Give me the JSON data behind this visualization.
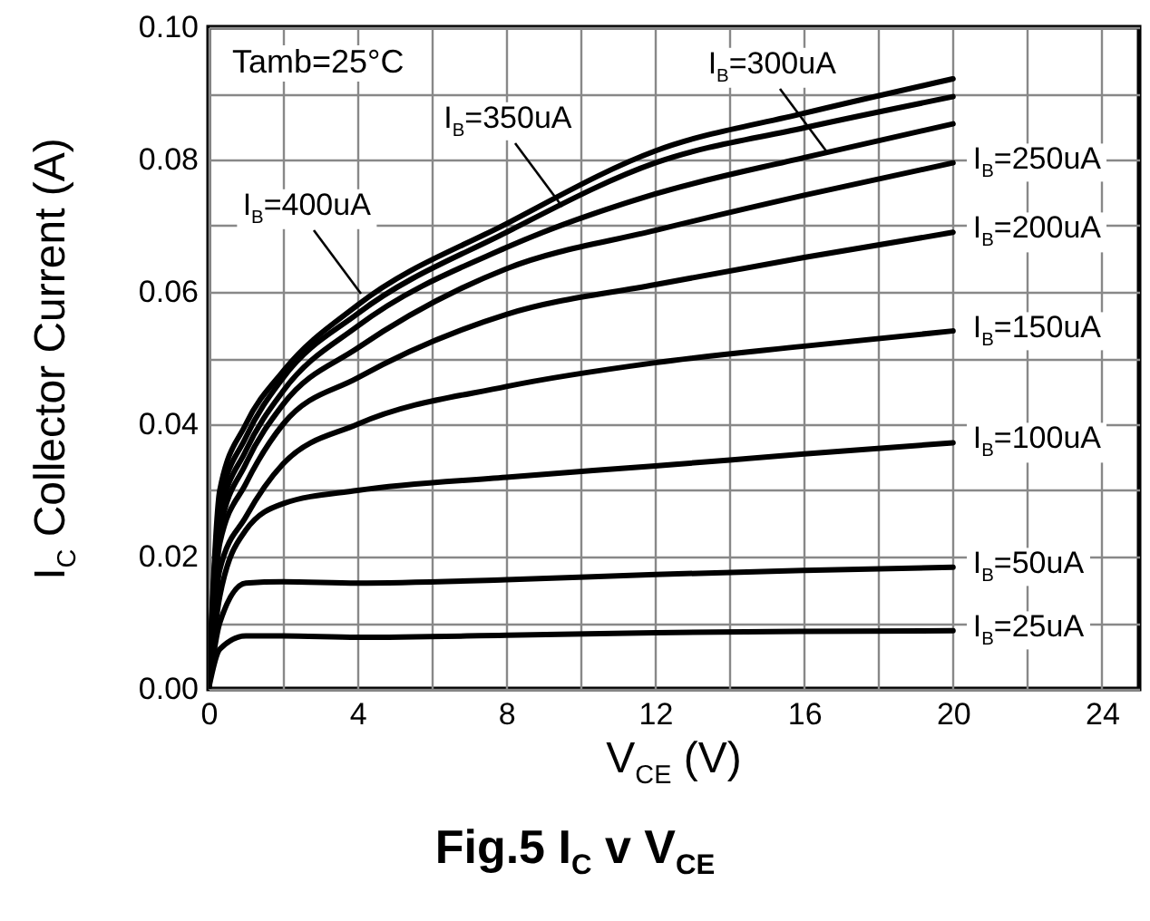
{
  "chart_data": {
    "type": "line",
    "title": "Fig.5  I$_{C}$ v  V$_{CE}$",
    "xlabel": "V$_{CE}$    (V)",
    "ylabel": "I$_{C}$  Collector Current (A)",
    "x": [
      0,
      0.3,
      1,
      2,
      4,
      8,
      12,
      16,
      20
    ],
    "series": [
      {
        "color": "#000000",
        "values": [
          0,
          0.03,
          0.04,
          0.048,
          0.058,
          0.0703,
          0.0813,
          0.087,
          0.0922
        ]
      },
      {
        "color": "#000000",
        "values": [
          0,
          0.028,
          0.038,
          0.047,
          0.0567,
          0.069,
          0.0795,
          0.0848,
          0.0895
        ]
      },
      {
        "color": "#000000",
        "values": [
          0,
          0.026,
          0.036,
          0.045,
          0.0548,
          0.0667,
          0.0748,
          0.0803,
          0.0854
        ]
      },
      {
        "color": "#000000",
        "values": [
          0,
          0.024,
          0.034,
          0.043,
          0.0515,
          0.0635,
          0.0693,
          0.0746,
          0.0795
        ]
      },
      {
        "color": "#000000",
        "values": [
          0,
          0.022,
          0.031,
          0.04,
          0.047,
          0.0566,
          0.0611,
          0.0652,
          0.069
        ]
      },
      {
        "color": "#000000",
        "values": [
          0,
          0.018,
          0.026,
          0.034,
          0.04,
          0.0457,
          0.0493,
          0.0518,
          0.0541
        ]
      },
      {
        "color": "#000000",
        "values": [
          0,
          0.014,
          0.024,
          0.028,
          0.03,
          0.032,
          0.0337,
          0.0355,
          0.0372
        ]
      },
      {
        "color": "#000000",
        "values": [
          0,
          0.01,
          0.016,
          0.0162,
          0.016,
          0.0165,
          0.0173,
          0.0179,
          0.0184
        ]
      },
      {
        "color": "#000000",
        "values": [
          0,
          0.006,
          0.008,
          0.008,
          0.0078,
          0.0081,
          0.0085,
          0.0087,
          0.0088
        ]
      }
    ],
    "annotations": [
      "Tamb=25°C",
      {
        "text": "I$_{B}$=400uA",
        "x": 4.1,
        "y": 0.0597
      },
      {
        "text": "I$_{B}$=350uA",
        "x": 9.5,
        "y": 0.073
      },
      {
        "text": "I$_{B}$=300uA",
        "x": 16.6,
        "y": 0.081
      },
      {
        "text": "I$_{B}$=250uA",
        "x": 20,
        "y": 0.0795
      },
      {
        "text": "I$_{B}$=200uA",
        "x": 20,
        "y": 0.069
      },
      {
        "text": "I$_{B}$=150uA",
        "x": 20,
        "y": 0.0541
      },
      {
        "text": "I$_{B}$=100uA",
        "x": 20,
        "y": 0.0372
      },
      {
        "text": "I$_{B}$=50uA",
        "x": 20,
        "y": 0.0184
      },
      {
        "text": "I$_{B}$=25uA",
        "x": 20,
        "y": 0.0088
      }
    ],
    "xlim": [
      0,
      25
    ],
    "xticks": [
      0,
      {
        "value": 2,
        "label": null
      },
      4,
      {
        "value": 6,
        "label": null
      },
      8,
      {
        "value": 10,
        "label": null
      },
      12,
      {
        "value": 14,
        "label": null
      },
      16,
      {
        "value": 18,
        "label": null
      },
      20,
      {
        "value": 22,
        "label": null
      },
      24
    ],
    "ylim": [
      0,
      0.1
    ],
    "yticks": [
      {
        "value": 0,
        "label": "0.00"
      },
      {
        "value": 0.01,
        "label": null
      },
      {
        "value": 0.02,
        "label": "0.02"
      },
      {
        "value": 0.03,
        "label": null
      },
      {
        "value": 0.04,
        "label": "0.04"
      },
      {
        "value": 0.05,
        "label": null
      },
      {
        "value": 0.06,
        "label": "0.06"
      },
      {
        "value": 0.07,
        "label": null
      },
      {
        "value": 0.08,
        "label": "0.08"
      },
      {
        "value": 0.09,
        "label": null
      },
      {
        "value": 0.1,
        "label": "0.10"
      }
    ],
    "grid": true,
    "marker": "none",
    "line_style": "solid"
  }
}
